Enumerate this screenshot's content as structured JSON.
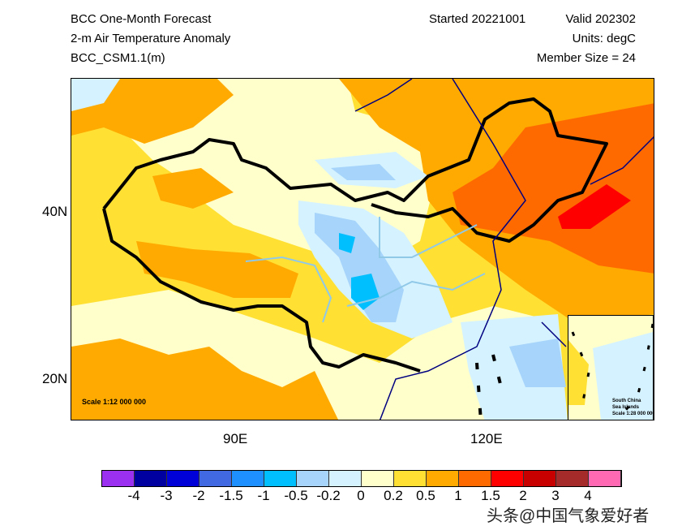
{
  "header": {
    "title": "BCC One-Month Forecast",
    "variable": "2-m Air Temperature Anomaly",
    "model": "BCC_CSM1.1(m)",
    "started": "Started 20221001",
    "valid": "Valid 202302",
    "units": "Units: degC",
    "member_size": "Member Size = 24"
  },
  "map": {
    "lat_labels": [
      "40N",
      "20N"
    ],
    "lon_labels": [
      "90E",
      "120E"
    ],
    "scale": "Scale 1:12 000 000",
    "inset": {
      "line1": "South China",
      "line2": "Sea Islands",
      "line3": "Scale 1:28 000 000"
    }
  },
  "colorbar": {
    "colors": [
      "#9b30f0",
      "#0000a0",
      "#0000d8",
      "#4169e1",
      "#1e90ff",
      "#00bfff",
      "#a6d4fa",
      "#d4f2ff",
      "#ffffcc",
      "#ffe033",
      "#ffaa00",
      "#ff6a00",
      "#ff0000",
      "#c80000",
      "#a52a2a",
      "#ff69b4"
    ],
    "labels": [
      "-4",
      "-3",
      "-2",
      "-1.5",
      "-1",
      "-0.5",
      "-0.2",
      "0",
      "0.2",
      "0.5",
      "1",
      "1.5",
      "2",
      "3",
      "4"
    ]
  },
  "watermark": "头条@中国气象爱好者"
}
